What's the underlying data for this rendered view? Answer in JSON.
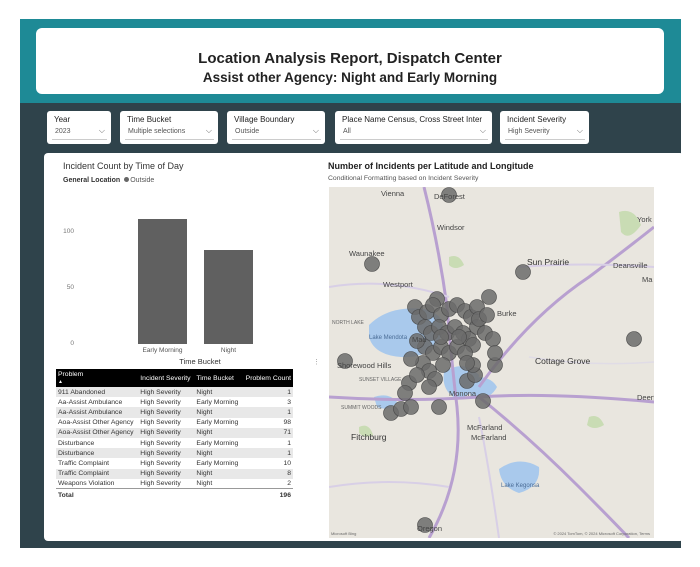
{
  "header": {
    "title": "Location Analysis Report, Dispatch Center",
    "subtitle": "Assist other Agency: Night and Early Morning"
  },
  "slicers": [
    {
      "label": "Year",
      "value": "2023"
    },
    {
      "label": "Time Bucket",
      "value": "Multiple selections"
    },
    {
      "label": "Village Boundary",
      "value": "Outside"
    },
    {
      "label": "Place Name Census, Cross Street Inter",
      "value": "All"
    },
    {
      "label": "Incident Severity",
      "value": "High Severity"
    }
  ],
  "bar_chart": {
    "title": "Incident Count by Time of Day",
    "legend_label": "General Location",
    "legend_item": "Outside",
    "xlabel": "Time Bucket",
    "color": "#606060"
  },
  "chart_data": {
    "type": "bar",
    "categories": [
      "Early Morning",
      "Night"
    ],
    "values": [
      112,
      84
    ],
    "title": "Incident Count by Time of Day",
    "xlabel": "Time Bucket",
    "ylabel": "",
    "yticks": [
      0,
      50,
      100
    ],
    "ylim": [
      0,
      125
    ],
    "legend": "General Location",
    "series": [
      {
        "name": "Outside",
        "values": [
          112,
          84
        ]
      }
    ]
  },
  "table": {
    "columns": [
      "Problem",
      "Incident Severity",
      "Time Bucket",
      "Problem Count"
    ],
    "rows": [
      [
        "911 Abandoned",
        "High Severity",
        "Night",
        "1"
      ],
      [
        "Aa-Assist Ambulance",
        "High Severity",
        "Early Morning",
        "3"
      ],
      [
        "Aa-Assist Ambulance",
        "High Severity",
        "Night",
        "1"
      ],
      [
        "Aoa-Assist Other Agency",
        "High Severity",
        "Early Morning",
        "98"
      ],
      [
        "Aoa-Assist Other Agency",
        "High Severity",
        "Night",
        "71"
      ],
      [
        "Disturbance",
        "High Severity",
        "Early Morning",
        "1"
      ],
      [
        "Disturbance",
        "High Severity",
        "Night",
        "1"
      ],
      [
        "Traffic Complaint",
        "High Severity",
        "Early Morning",
        "10"
      ],
      [
        "Traffic Complaint",
        "High Severity",
        "Night",
        "8"
      ],
      [
        "Weapons Violation",
        "High Severity",
        "Night",
        "2"
      ]
    ],
    "total_label": "Total",
    "total_value": "196"
  },
  "map": {
    "title": "Number of Incidents per Latitude and Longitude",
    "subtitle": "Conditional Formatting based on Incident Severity",
    "labels": {
      "vienna": "Vienna",
      "deforest": "DeForest",
      "windsor": "Windsor",
      "york": "York",
      "waunakee": "Waunakee",
      "sun_prairie": "Sun Prairie",
      "deansville": "Deansville",
      "ma": "Ma",
      "westport": "Westport",
      "burke": "Burke",
      "north_lake": "NORTH LAKE",
      "lake_mendota": "Lake Mendota",
      "madison": "Mad",
      "shorewood": "Shorewood Hills",
      "sunset_village": "SUNSET VILLAGE",
      "summit_woods": "SUMMIT WOODS",
      "cottage_grove": "Cottage Grove",
      "deerf": "Deerf",
      "monona": "Monona",
      "fitchburg": "Fitchburg",
      "mcfarland1": "McFarland",
      "mcfarland2": "McFarland",
      "lake_kegonsa": "Lake Kegonsa",
      "oregon": "Oregon"
    },
    "footer": "Microsoft Bing",
    "copyright": "© 2024 TomTom, © 2024 Microsoft Corporation, Terms"
  },
  "colors": {
    "header_band": "#1e8a96",
    "background": "#2f434b",
    "bar": "#606060",
    "bubble": "#6b6b6b"
  }
}
